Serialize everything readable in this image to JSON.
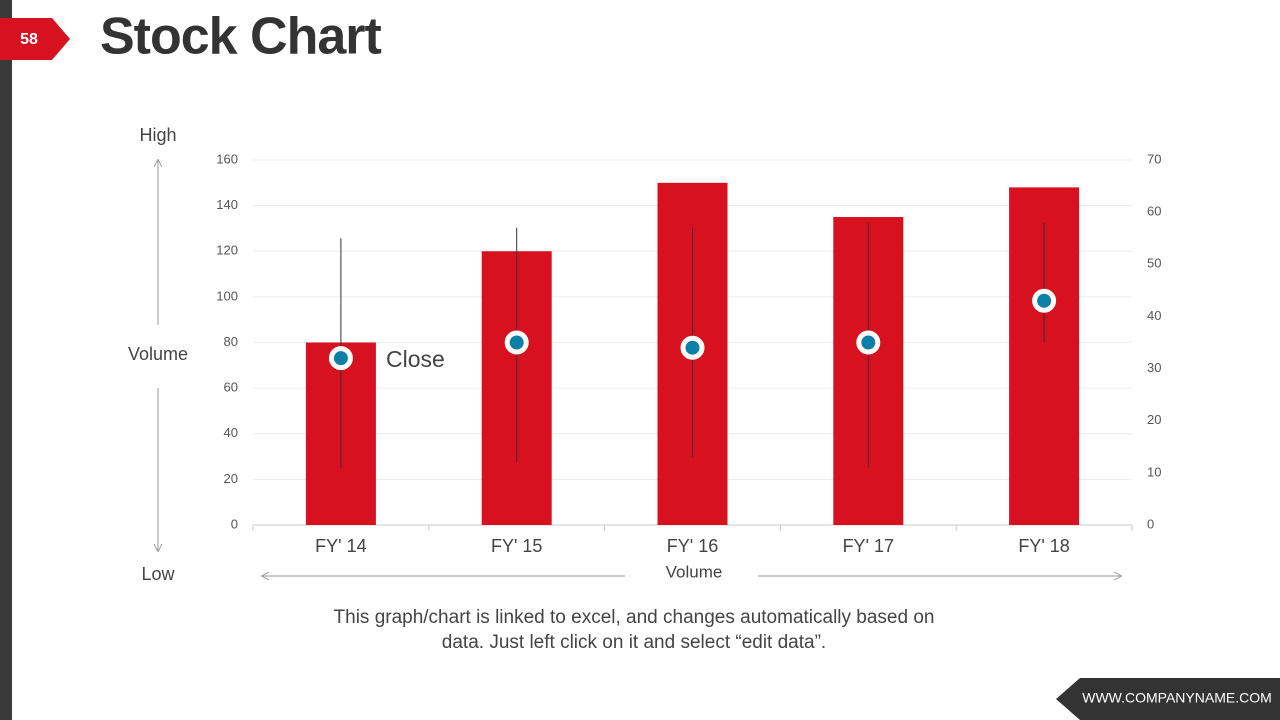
{
  "slide": {
    "number": "58",
    "title": "Stock Chart",
    "note": [
      "This graph/chart is linked to excel, and changes automatically based on",
      "data. Just left click on it and select “edit data”."
    ],
    "footer": "WWW.COMPANYNAME.COM"
  },
  "chart_data": {
    "type": "stock",
    "categories": [
      "FY' 14",
      "FY' 15",
      "FY' 16",
      "FY' 17",
      "FY' 18"
    ],
    "x_label": "Volume",
    "series": [
      {
        "name": "Volume",
        "color": "#d7111f",
        "values": [
          80,
          120,
          150,
          135,
          148
        ]
      },
      {
        "name": "High",
        "color": "#333333",
        "axis": "y2",
        "values": [
          55,
          57,
          57,
          58,
          58
        ]
      },
      {
        "name": "Low",
        "color": "#333333",
        "axis": "y2",
        "values": [
          11,
          12,
          13,
          11,
          35
        ]
      },
      {
        "name": "Close",
        "color": "#0e7fa6",
        "axis": "y2",
        "values": [
          32,
          35,
          34,
          35,
          43
        ]
      }
    ],
    "ylim": [
      0,
      160
    ],
    "yticks": [
      0,
      20,
      40,
      60,
      80,
      100,
      120,
      140,
      160
    ],
    "y2lim": [
      0,
      70
    ],
    "y2ticks": [
      0,
      10,
      20,
      30,
      40,
      50,
      60,
      70
    ],
    "grid": true
  }
}
